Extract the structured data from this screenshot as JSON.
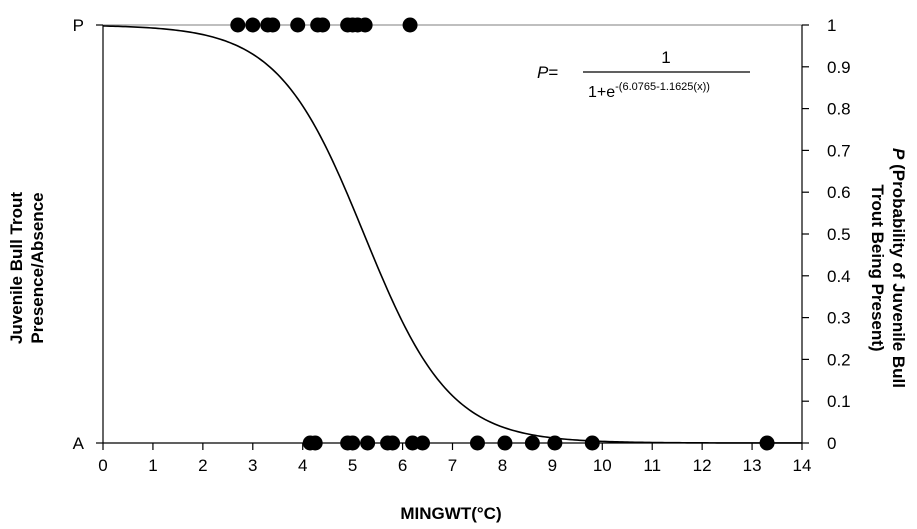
{
  "chart_data": {
    "type": "scatter",
    "title": "",
    "xlabel": "MINGWT(°C)",
    "ylabel_left_line1": "Juvenile Bull Trout",
    "ylabel_left_line2": "Presence/Absence",
    "ylabel_right_line1": "(Probability of Juvenile  Bull",
    "ylabel_right_line2": "Trout Being Present)",
    "ylabel_right_prefix": "P",
    "xlim": [
      0,
      14
    ],
    "ylim": [
      0,
      1
    ],
    "x_ticks": [
      "0",
      "1",
      "2",
      "3",
      "4",
      "5",
      "6",
      "7",
      "8",
      "9",
      "10",
      "11",
      "12",
      "13",
      "14"
    ],
    "y_ticks_right": [
      "0",
      "0.1",
      "0.2",
      "0.3",
      "0.4",
      "0.5",
      "0.6",
      "0.7",
      "0.8",
      "0.9",
      "1"
    ],
    "y_ticks_left": [
      "A",
      "P"
    ],
    "equation": {
      "lhs": "P",
      "equals": "=",
      "numerator": "1",
      "denominator_base": "1+e",
      "denominator_exponent": "-(6.0765-1.1625(x))"
    },
    "logistic": {
      "a": 6.0765,
      "b": 1.1625
    },
    "series": [
      {
        "presence": 1,
        "x": [
          2.7,
          3.0,
          3.3,
          3.4,
          3.9,
          4.3,
          4.4,
          4.9,
          5.0,
          5.1,
          5.25,
          6.15
        ]
      },
      {
        "presence": 0,
        "x": [
          4.15,
          4.25,
          4.9,
          5.0,
          5.3,
          5.7,
          5.8,
          6.2,
          6.4,
          7.5,
          8.05,
          8.6,
          9.05,
          9.8,
          13.3
        ]
      }
    ],
    "grid": false,
    "legend": "none"
  }
}
